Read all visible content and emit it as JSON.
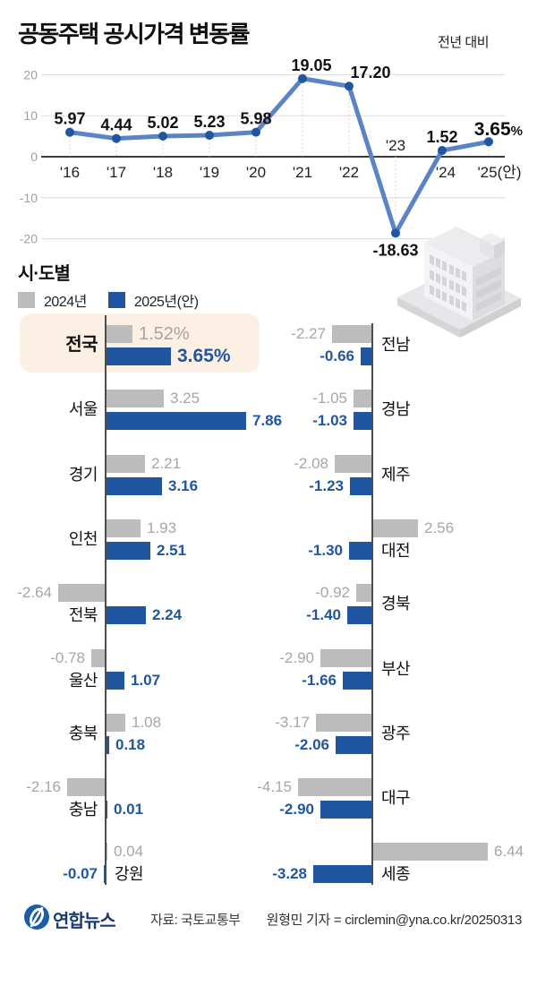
{
  "header": {
    "title": "공동주택 공시가격 변동률",
    "note": "전년 대비"
  },
  "chart_data": [
    {
      "type": "line",
      "title": "공동주택 공시가격 변동률",
      "subtitle": "전년 대비",
      "unit": "%",
      "x_labels": [
        "'16",
        "'17",
        "'18",
        "'19",
        "'20",
        "'21",
        "'22",
        "'23",
        "'24",
        "'25(안)"
      ],
      "values": [
        5.97,
        4.44,
        5.02,
        5.23,
        5.98,
        19.05,
        17.2,
        -18.63,
        1.52,
        3.65
      ],
      "point_labels": [
        "5.97",
        "4.44",
        "5.02",
        "5.23",
        "5.98",
        "19.05",
        "17.20",
        "-18.63",
        "1.52",
        "3.65%"
      ],
      "yticks": [
        20,
        10,
        0,
        -10,
        -20
      ],
      "ylim": [
        -22,
        22
      ],
      "grid": true,
      "legend_position": "none",
      "line_color": "#5b84c6",
      "marker_color": "#2056a0"
    },
    {
      "type": "bar",
      "title": "시·도별",
      "unit": "%",
      "series": [
        "2024년",
        "2025년(안)"
      ],
      "series_colors": [
        "#bcbcbc",
        "#2056a0"
      ],
      "columns": [
        {
          "rows": [
            {
              "region": "전국",
              "values": [
                1.52,
                3.65
              ],
              "labels": [
                "1.52%",
                "3.65%"
              ],
              "highlight": true
            },
            {
              "region": "서울",
              "values": [
                3.25,
                7.86
              ],
              "labels": [
                "3.25",
                "7.86"
              ]
            },
            {
              "region": "경기",
              "values": [
                2.21,
                3.16
              ],
              "labels": [
                "2.21",
                "3.16"
              ]
            },
            {
              "region": "인천",
              "values": [
                1.93,
                2.51
              ],
              "labels": [
                "1.93",
                "2.51"
              ]
            },
            {
              "region": "전북",
              "values": [
                -2.64,
                2.24
              ],
              "labels": [
                "-2.64",
                "2.24"
              ]
            },
            {
              "region": "울산",
              "values": [
                -0.78,
                1.07
              ],
              "labels": [
                "-0.78",
                "1.07"
              ]
            },
            {
              "region": "충북",
              "values": [
                1.08,
                0.18
              ],
              "labels": [
                "1.08",
                "0.18"
              ]
            },
            {
              "region": "충남",
              "values": [
                -2.16,
                0.01
              ],
              "labels": [
                "-2.16",
                "0.01"
              ]
            },
            {
              "region": "강원",
              "values": [
                0.04,
                -0.07
              ],
              "labels": [
                "0.04",
                "-0.07"
              ]
            }
          ]
        },
        {
          "rows": [
            {
              "region": "전남",
              "values": [
                -2.27,
                -0.66
              ],
              "labels": [
                "-2.27",
                "-0.66"
              ]
            },
            {
              "region": "경남",
              "values": [
                -1.05,
                -1.03
              ],
              "labels": [
                "-1.05",
                "-1.03"
              ]
            },
            {
              "region": "제주",
              "values": [
                -2.08,
                -1.23
              ],
              "labels": [
                "-2.08",
                "-1.23"
              ]
            },
            {
              "region": "대전",
              "values": [
                2.56,
                -1.3
              ],
              "labels": [
                "2.56",
                "-1.30"
              ]
            },
            {
              "region": "경북",
              "values": [
                -0.92,
                -1.4
              ],
              "labels": [
                "-0.92",
                "-1.40"
              ]
            },
            {
              "region": "부산",
              "values": [
                -2.9,
                -1.66
              ],
              "labels": [
                "-2.90",
                "-1.66"
              ]
            },
            {
              "region": "광주",
              "values": [
                -3.17,
                -2.06
              ],
              "labels": [
                "-3.17",
                "-2.06"
              ]
            },
            {
              "region": "대구",
              "values": [
                -4.15,
                -2.9
              ],
              "labels": [
                "-4.15",
                "-2.90"
              ]
            },
            {
              "region": "세종",
              "values": [
                6.44,
                -3.28
              ],
              "labels": [
                "6.44",
                "-3.28"
              ]
            }
          ]
        }
      ]
    }
  ],
  "colors": {
    "accent_blue": "#2056a0",
    "line_blue": "#5b84c6",
    "bar_gray": "#bcbcbc",
    "highlight_bg": "#fcefe4",
    "logo_navy": "#1b3a73",
    "logo_circle": "#1a5cab"
  },
  "footer": {
    "logo_text": "연합뉴스",
    "source": "자료: 국토교통부",
    "credit": "원형민 기자 = circlemin@yna.co.kr/20250313"
  }
}
